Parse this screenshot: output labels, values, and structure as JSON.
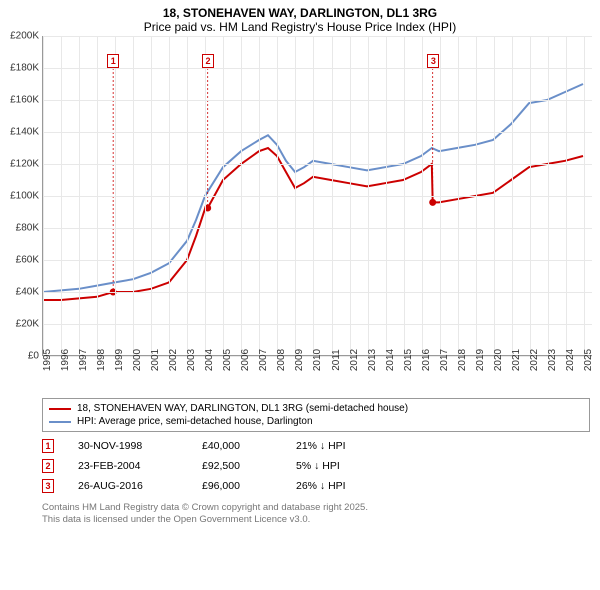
{
  "title": {
    "main": "18, STONEHAVEN WAY, DARLINGTON, DL1 3RG",
    "sub": "Price paid vs. HM Land Registry's House Price Index (HPI)"
  },
  "chart": {
    "type": "line",
    "background_color": "#ffffff",
    "grid_color": "#e8e8e8",
    "axis_color": "#999999",
    "label_fontsize": 10,
    "title_fontsize": 12,
    "xlim": [
      1995,
      2025.5
    ],
    "ylim": [
      0,
      200000
    ],
    "ytick_step": 20000,
    "yticks": [
      "£0",
      "£20K",
      "£40K",
      "£60K",
      "£80K",
      "£100K",
      "£120K",
      "£140K",
      "£160K",
      "£180K",
      "£200K"
    ],
    "xticks": [
      1995,
      1996,
      1997,
      1998,
      1999,
      2000,
      2001,
      2002,
      2003,
      2004,
      2005,
      2006,
      2007,
      2008,
      2009,
      2010,
      2011,
      2012,
      2013,
      2014,
      2015,
      2016,
      2017,
      2018,
      2019,
      2020,
      2021,
      2022,
      2023,
      2024,
      2025
    ],
    "series": [
      {
        "name": "18, STONEHAVEN WAY, DARLINGTON, DL1 3RG (semi-detached house)",
        "color": "#cc0000",
        "line_width": 2,
        "points": [
          [
            1995,
            35000
          ],
          [
            1996,
            35000
          ],
          [
            1997,
            36000
          ],
          [
            1998,
            37000
          ],
          [
            1998.9,
            40000
          ],
          [
            1999.5,
            40000
          ],
          [
            2000,
            40000
          ],
          [
            2001,
            42000
          ],
          [
            2002,
            46000
          ],
          [
            2003,
            60000
          ],
          [
            2003.5,
            75000
          ],
          [
            2004,
            92000
          ],
          [
            2004.15,
            92500
          ],
          [
            2005,
            110000
          ],
          [
            2006,
            120000
          ],
          [
            2007,
            128000
          ],
          [
            2007.5,
            130000
          ],
          [
            2008,
            125000
          ],
          [
            2008.5,
            115000
          ],
          [
            2009,
            105000
          ],
          [
            2009.5,
            108000
          ],
          [
            2010,
            112000
          ],
          [
            2011,
            110000
          ],
          [
            2012,
            108000
          ],
          [
            2013,
            106000
          ],
          [
            2014,
            108000
          ],
          [
            2015,
            110000
          ],
          [
            2016,
            115000
          ],
          [
            2016.6,
            120000
          ],
          [
            2016.65,
            96000
          ],
          [
            2017,
            96000
          ],
          [
            2018,
            98000
          ],
          [
            2019,
            100000
          ],
          [
            2020,
            102000
          ],
          [
            2021,
            110000
          ],
          [
            2022,
            118000
          ],
          [
            2023,
            120000
          ],
          [
            2024,
            122000
          ],
          [
            2025,
            125000
          ]
        ]
      },
      {
        "name": "HPI: Average price, semi-detached house, Darlington",
        "color": "#6a8fc9",
        "line_width": 2,
        "points": [
          [
            1995,
            40000
          ],
          [
            1996,
            41000
          ],
          [
            1997,
            42000
          ],
          [
            1998,
            44000
          ],
          [
            1999,
            46000
          ],
          [
            2000,
            48000
          ],
          [
            2001,
            52000
          ],
          [
            2002,
            58000
          ],
          [
            2003,
            72000
          ],
          [
            2003.5,
            85000
          ],
          [
            2004,
            100000
          ],
          [
            2005,
            118000
          ],
          [
            2006,
            128000
          ],
          [
            2007,
            135000
          ],
          [
            2007.5,
            138000
          ],
          [
            2008,
            132000
          ],
          [
            2008.5,
            122000
          ],
          [
            2009,
            115000
          ],
          [
            2009.5,
            118000
          ],
          [
            2010,
            122000
          ],
          [
            2011,
            120000
          ],
          [
            2012,
            118000
          ],
          [
            2013,
            116000
          ],
          [
            2014,
            118000
          ],
          [
            2015,
            120000
          ],
          [
            2016,
            125000
          ],
          [
            2016.6,
            130000
          ],
          [
            2017,
            128000
          ],
          [
            2018,
            130000
          ],
          [
            2019,
            132000
          ],
          [
            2020,
            135000
          ],
          [
            2021,
            145000
          ],
          [
            2022,
            158000
          ],
          [
            2023,
            160000
          ],
          [
            2024,
            165000
          ],
          [
            2025,
            170000
          ]
        ]
      }
    ],
    "sale_markers": [
      {
        "num": "1",
        "x": 1998.9,
        "y": 40000
      },
      {
        "num": "2",
        "x": 2004.15,
        "y": 92500
      },
      {
        "num": "3",
        "x": 2016.65,
        "y": 96000
      }
    ]
  },
  "legend": {
    "items": [
      {
        "color": "#cc0000",
        "label": "18, STONEHAVEN WAY, DARLINGTON, DL1 3RG (semi-detached house)"
      },
      {
        "color": "#6a8fc9",
        "label": "HPI: Average price, semi-detached house, Darlington"
      }
    ]
  },
  "transactions": [
    {
      "num": "1",
      "date": "30-NOV-1998",
      "price": "£40,000",
      "hpi": "21% ↓ HPI"
    },
    {
      "num": "2",
      "date": "23-FEB-2004",
      "price": "£92,500",
      "hpi": "5% ↓ HPI"
    },
    {
      "num": "3",
      "date": "26-AUG-2016",
      "price": "£96,000",
      "hpi": "26% ↓ HPI"
    }
  ],
  "footer": {
    "line1": "Contains HM Land Registry data © Crown copyright and database right 2025.",
    "line2": "This data is licensed under the Open Government Licence v3.0."
  }
}
